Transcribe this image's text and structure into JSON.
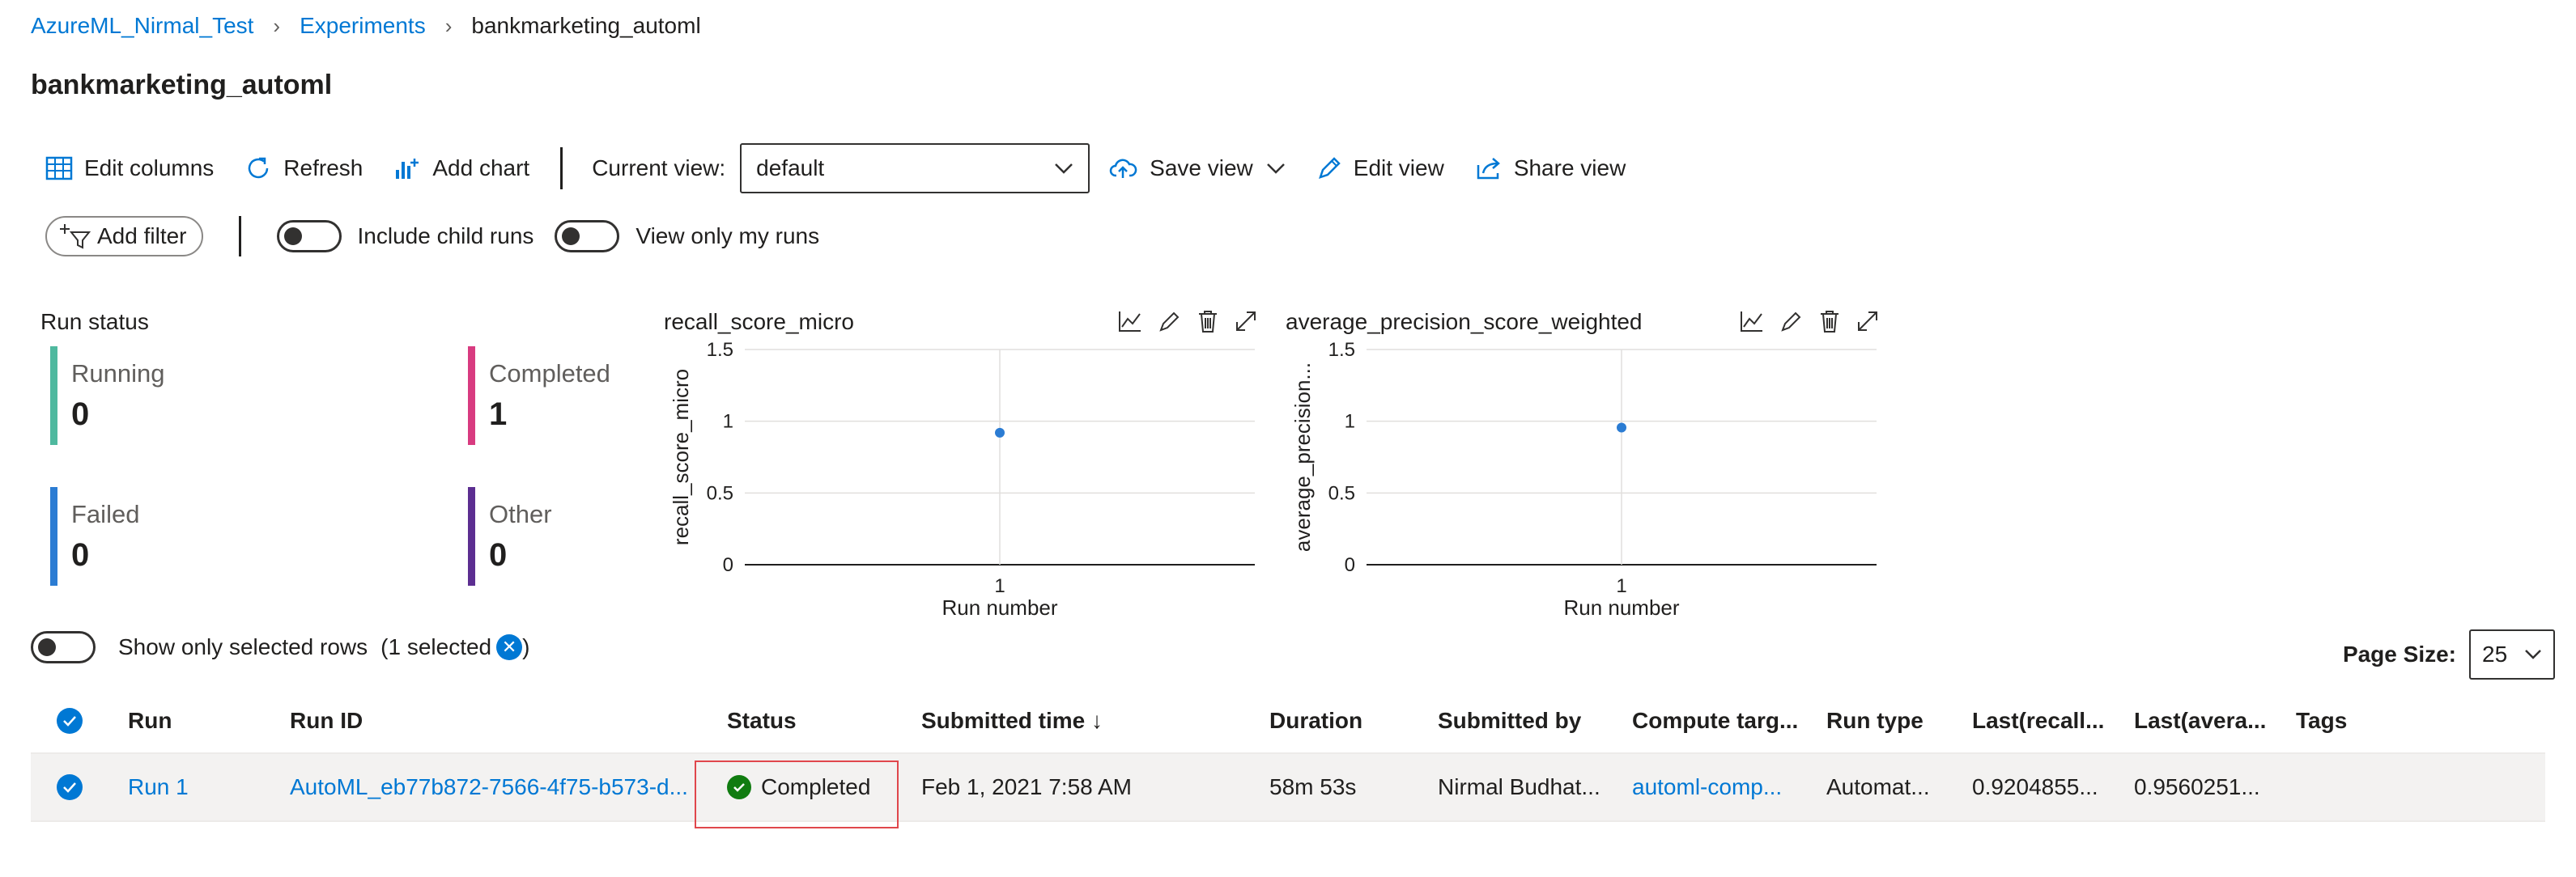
{
  "breadcrumb": {
    "workspace": "AzureML_Nirmal_Test",
    "experiments": "Experiments",
    "current": "bankmarketing_automl"
  },
  "page_title": "bankmarketing_automl",
  "toolbar": {
    "edit_columns": "Edit columns",
    "refresh": "Refresh",
    "add_chart": "Add chart",
    "current_view_label": "Current view:",
    "current_view_value": "default",
    "save_view": "Save view",
    "edit_view": "Edit view",
    "share_view": "Share view"
  },
  "filters": {
    "add_filter": "Add filter",
    "include_child_runs": "Include child runs",
    "view_only_my_runs": "View only my runs"
  },
  "run_status": {
    "title": "Run status",
    "items": [
      {
        "label": "Running",
        "value": "0",
        "color": "#4fb99f"
      },
      {
        "label": "Completed",
        "value": "1",
        "color": "#d83b80"
      },
      {
        "label": "Failed",
        "value": "0",
        "color": "#2b7cd3"
      },
      {
        "label": "Other",
        "value": "0",
        "color": "#5c2e91"
      }
    ]
  },
  "chart_data": [
    {
      "type": "scatter",
      "title": "recall_score_micro",
      "xlabel": "Run number",
      "ylabel": "recall_score_micro",
      "x_ticks": [
        "1"
      ],
      "y_ticks": [
        "0",
        "0.5",
        "1",
        "1.5"
      ],
      "ylim": [
        0,
        1.5
      ],
      "points": [
        {
          "x": 1,
          "y": 0.92
        }
      ],
      "color": "#2b7cd3"
    },
    {
      "type": "scatter",
      "title": "average_precision_score_weighted",
      "xlabel": "Run number",
      "ylabel": "average_precision...",
      "x_ticks": [
        "1"
      ],
      "y_ticks": [
        "0",
        "0.5",
        "1",
        "1.5"
      ],
      "ylim": [
        0,
        1.5
      ],
      "points": [
        {
          "x": 1,
          "y": 0.956
        }
      ],
      "color": "#2b7cd3"
    }
  ],
  "table_controls": {
    "show_only_selected": "Show only selected rows",
    "selected_count_open": "(1 selected",
    "selected_count_close": ")",
    "page_size_label": "Page Size:",
    "page_size_value": "25"
  },
  "table": {
    "columns": [
      "Run",
      "Run ID",
      "Status",
      "Submitted time ↓",
      "Duration",
      "Submitted by",
      "Compute targ...",
      "Run type",
      "Last(recall...",
      "Last(avera...",
      "Tags"
    ],
    "rows": [
      {
        "run": "Run 1",
        "run_id": "AutoML_eb77b872-7566-4f75-b573-d...",
        "status": "Completed",
        "submitted_time": "Feb 1, 2021 7:58 AM",
        "duration": "58m 53s",
        "submitted_by": "Nirmal Budhat...",
        "compute_target": "automl-comp...",
        "run_type": "Automat...",
        "last_recall": "0.9204855...",
        "last_avg": "0.9560251...",
        "tags": ""
      }
    ]
  }
}
